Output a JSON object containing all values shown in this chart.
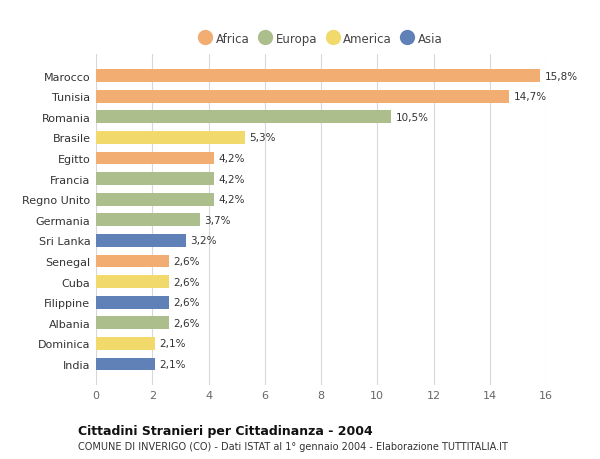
{
  "categories": [
    "Marocco",
    "Tunisia",
    "Romania",
    "Brasile",
    "Egitto",
    "Francia",
    "Regno Unito",
    "Germania",
    "Sri Lanka",
    "Senegal",
    "Cuba",
    "Filippine",
    "Albania",
    "Dominica",
    "India"
  ],
  "values": [
    15.8,
    14.7,
    10.5,
    5.3,
    4.2,
    4.2,
    4.2,
    3.7,
    3.2,
    2.6,
    2.6,
    2.6,
    2.6,
    2.1,
    2.1
  ],
  "labels": [
    "15,8%",
    "14,7%",
    "10,5%",
    "5,3%",
    "4,2%",
    "4,2%",
    "4,2%",
    "3,7%",
    "3,2%",
    "2,6%",
    "2,6%",
    "2,6%",
    "2,6%",
    "2,1%",
    "2,1%"
  ],
  "continents": [
    "Africa",
    "Africa",
    "Europa",
    "America",
    "Africa",
    "Europa",
    "Europa",
    "Europa",
    "Asia",
    "Africa",
    "America",
    "Asia",
    "Europa",
    "America",
    "Asia"
  ],
  "colors": {
    "Africa": "#F2AE72",
    "Europa": "#ABBE8C",
    "America": "#F2D96B",
    "Asia": "#6080B8"
  },
  "title": "Cittadini Stranieri per Cittadinanza - 2004",
  "subtitle": "COMUNE DI INVERIGO (CO) - Dati ISTAT al 1° gennaio 2004 - Elaborazione TUTTITALIA.IT",
  "xlim": [
    0,
    16
  ],
  "xticks": [
    0,
    2,
    4,
    6,
    8,
    10,
    12,
    14,
    16
  ],
  "background_color": "#ffffff",
  "grid_color": "#d8d8d8"
}
